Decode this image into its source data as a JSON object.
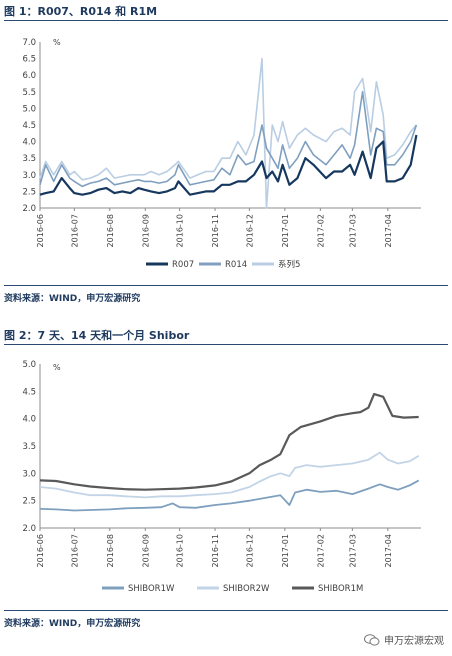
{
  "fig1": {
    "title": "图 1：R007、R014 和 R1M",
    "source": "资料来源：WIND，申万宏源研究",
    "chart_data": {
      "type": "line",
      "ylabel": "%",
      "ylim": [
        2.0,
        7.0
      ],
      "yticks": [
        "2.0",
        "2.5",
        "3.0",
        "3.5",
        "4.0",
        "4.5",
        "5.0",
        "5.5",
        "6.0",
        "6.5",
        "7.0"
      ],
      "x_range": [
        "2016-06-01",
        "2017-04-30"
      ],
      "xticks": [
        "2016-06",
        "2016-07",
        "2016-08",
        "2016-09",
        "2016-10",
        "2016-11",
        "2016-12",
        "2017-01",
        "2017-02",
        "2017-03",
        "2017-04"
      ],
      "legend_position": "bottom",
      "series": [
        {
          "name": "R007",
          "color": "#16375e",
          "width": 2.2,
          "x": [
            "2016-06-01",
            "2016-06-06",
            "2016-06-13",
            "2016-06-20",
            "2016-06-27",
            "2016-07-01",
            "2016-07-08",
            "2016-07-15",
            "2016-07-22",
            "2016-07-29",
            "2016-08-05",
            "2016-08-12",
            "2016-08-19",
            "2016-08-26",
            "2016-08-31",
            "2016-09-06",
            "2016-09-13",
            "2016-09-20",
            "2016-09-27",
            "2016-09-30",
            "2016-10-10",
            "2016-10-17",
            "2016-10-24",
            "2016-10-31",
            "2016-11-07",
            "2016-11-14",
            "2016-11-21",
            "2016-11-28",
            "2016-12-05",
            "2016-12-12",
            "2016-12-16",
            "2016-12-21",
            "2016-12-26",
            "2016-12-30",
            "2017-01-05",
            "2017-01-12",
            "2017-01-19",
            "2017-01-26",
            "2017-02-06",
            "2017-02-13",
            "2017-02-20",
            "2017-02-27",
            "2017-03-03",
            "2017-03-10",
            "2017-03-17",
            "2017-03-22",
            "2017-03-28",
            "2017-03-31",
            "2017-04-07",
            "2017-04-14",
            "2017-04-21",
            "2017-04-26"
          ],
          "values": [
            2.4,
            2.45,
            2.5,
            2.9,
            2.6,
            2.45,
            2.4,
            2.45,
            2.55,
            2.6,
            2.45,
            2.5,
            2.45,
            2.6,
            2.55,
            2.5,
            2.45,
            2.5,
            2.6,
            2.8,
            2.4,
            2.45,
            2.5,
            2.5,
            2.7,
            2.7,
            2.8,
            2.8,
            3.0,
            3.4,
            2.9,
            3.1,
            2.8,
            3.3,
            2.7,
            2.9,
            3.5,
            3.3,
            2.9,
            3.1,
            3.1,
            3.3,
            3.0,
            3.7,
            2.9,
            3.8,
            4.0,
            2.8,
            2.8,
            2.9,
            3.3,
            4.2
          ]
        },
        {
          "name": "R014",
          "color": "#7f9fbf",
          "width": 1.6,
          "x": [
            "2016-06-01",
            "2016-06-06",
            "2016-06-13",
            "2016-06-20",
            "2016-06-27",
            "2016-07-01",
            "2016-07-08",
            "2016-07-15",
            "2016-07-22",
            "2016-07-29",
            "2016-08-05",
            "2016-08-12",
            "2016-08-19",
            "2016-08-26",
            "2016-08-31",
            "2016-09-06",
            "2016-09-13",
            "2016-09-20",
            "2016-09-27",
            "2016-09-30",
            "2016-10-10",
            "2016-10-17",
            "2016-10-24",
            "2016-10-31",
            "2016-11-07",
            "2016-11-14",
            "2016-11-21",
            "2016-11-28",
            "2016-12-05",
            "2016-12-12",
            "2016-12-16",
            "2016-12-21",
            "2016-12-26",
            "2016-12-30",
            "2017-01-05",
            "2017-01-12",
            "2017-01-19",
            "2017-01-26",
            "2017-02-06",
            "2017-02-13",
            "2017-02-20",
            "2017-02-27",
            "2017-03-03",
            "2017-03-10",
            "2017-03-17",
            "2017-03-22",
            "2017-03-28",
            "2017-03-31",
            "2017-04-07",
            "2017-04-14",
            "2017-04-21",
            "2017-04-26"
          ],
          "values": [
            2.7,
            3.3,
            2.8,
            3.3,
            2.9,
            2.8,
            2.65,
            2.75,
            2.8,
            2.9,
            2.7,
            2.75,
            2.8,
            2.85,
            2.8,
            2.8,
            2.75,
            2.8,
            3.0,
            3.3,
            2.7,
            2.75,
            2.8,
            2.85,
            3.2,
            3.0,
            3.6,
            3.3,
            3.4,
            4.5,
            3.8,
            3.5,
            3.2,
            3.9,
            3.2,
            3.5,
            4.0,
            3.6,
            3.3,
            3.6,
            3.9,
            3.5,
            3.9,
            5.5,
            3.6,
            4.4,
            4.3,
            3.3,
            3.3,
            3.6,
            4.0,
            4.5
          ]
        },
        {
          "name": "系列5",
          "color": "#b9cde3",
          "width": 1.6,
          "x": [
            "2016-06-01",
            "2016-06-06",
            "2016-06-13",
            "2016-06-20",
            "2016-06-27",
            "2016-07-01",
            "2016-07-08",
            "2016-07-15",
            "2016-07-22",
            "2016-07-29",
            "2016-08-05",
            "2016-08-12",
            "2016-08-19",
            "2016-08-26",
            "2016-08-31",
            "2016-09-06",
            "2016-09-13",
            "2016-09-20",
            "2016-09-27",
            "2016-09-30",
            "2016-10-10",
            "2016-10-17",
            "2016-10-24",
            "2016-10-31",
            "2016-11-07",
            "2016-11-14",
            "2016-11-21",
            "2016-11-28",
            "2016-12-05",
            "2016-12-12",
            "2016-12-16",
            "2016-12-21",
            "2016-12-26",
            "2016-12-30",
            "2017-01-05",
            "2017-01-12",
            "2017-01-19",
            "2017-01-26",
            "2017-02-06",
            "2017-02-13",
            "2017-02-20",
            "2017-02-27",
            "2017-03-03",
            "2017-03-10",
            "2017-03-17",
            "2017-03-22",
            "2017-03-28",
            "2017-03-31",
            "2017-04-07",
            "2017-04-14",
            "2017-04-21",
            "2017-04-26"
          ],
          "values": [
            2.9,
            3.4,
            3.0,
            3.4,
            3.0,
            3.1,
            2.85,
            2.9,
            3.0,
            3.2,
            2.9,
            2.95,
            3.0,
            3.0,
            3.0,
            3.1,
            3.0,
            3.1,
            3.3,
            3.4,
            2.9,
            3.0,
            3.1,
            3.1,
            3.5,
            3.5,
            4.0,
            3.6,
            4.2,
            6.5,
            2.0,
            4.5,
            4.0,
            4.6,
            3.8,
            4.2,
            4.4,
            4.2,
            4.0,
            4.3,
            4.4,
            4.2,
            5.5,
            5.9,
            4.3,
            5.8,
            4.8,
            3.5,
            3.6,
            3.9,
            4.3,
            4.5
          ]
        }
      ]
    }
  },
  "fig2": {
    "title": "图 2：7 天、14 天和一个月 Shibor",
    "source": "资料来源：WIND，申万宏源研究",
    "chart_data": {
      "type": "line",
      "ylabel": "%",
      "ylim": [
        2.0,
        5.0
      ],
      "yticks": [
        "2.0",
        "2.5",
        "3.0",
        "3.5",
        "4.0",
        "4.5",
        "5.0"
      ],
      "x_range": [
        "2016-06-01",
        "2017-04-30"
      ],
      "xticks": [
        "2016-06",
        "2016-07",
        "2016-08",
        "2016-09",
        "2016-10",
        "2016-11",
        "2016-12",
        "2017-01",
        "2017-02",
        "2017-03",
        "2017-04"
      ],
      "legend_position": "bottom",
      "series": [
        {
          "name": "SHIBOR1W",
          "color": "#7f9fbf",
          "width": 1.8,
          "x": [
            "2016-06-01",
            "2016-06-15",
            "2016-07-01",
            "2016-07-15",
            "2016-08-01",
            "2016-08-15",
            "2016-09-01",
            "2016-09-15",
            "2016-09-25",
            "2016-10-01",
            "2016-10-15",
            "2016-11-01",
            "2016-11-15",
            "2016-12-01",
            "2016-12-15",
            "2016-12-28",
            "2017-01-05",
            "2017-01-10",
            "2017-01-20",
            "2017-02-01",
            "2017-02-15",
            "2017-03-01",
            "2017-03-15",
            "2017-03-25",
            "2017-04-01",
            "2017-04-10",
            "2017-04-20",
            "2017-04-28"
          ],
          "values": [
            2.35,
            2.34,
            2.32,
            2.33,
            2.34,
            2.36,
            2.37,
            2.38,
            2.45,
            2.38,
            2.37,
            2.42,
            2.45,
            2.5,
            2.55,
            2.6,
            2.42,
            2.65,
            2.7,
            2.66,
            2.68,
            2.62,
            2.72,
            2.8,
            2.75,
            2.7,
            2.78,
            2.87
          ]
        },
        {
          "name": "SHIBOR2W",
          "color": "#c2d4e6",
          "width": 1.8,
          "x": [
            "2016-06-01",
            "2016-06-15",
            "2016-07-01",
            "2016-07-15",
            "2016-08-01",
            "2016-08-15",
            "2016-09-01",
            "2016-09-15",
            "2016-10-01",
            "2016-10-15",
            "2016-11-01",
            "2016-11-15",
            "2016-12-01",
            "2016-12-10",
            "2016-12-20",
            "2016-12-28",
            "2017-01-05",
            "2017-01-10",
            "2017-01-20",
            "2017-02-01",
            "2017-02-15",
            "2017-03-01",
            "2017-03-15",
            "2017-03-25",
            "2017-04-01",
            "2017-04-10",
            "2017-04-20",
            "2017-04-28"
          ],
          "values": [
            2.75,
            2.72,
            2.65,
            2.6,
            2.6,
            2.58,
            2.56,
            2.58,
            2.58,
            2.6,
            2.62,
            2.65,
            2.75,
            2.85,
            2.95,
            3.0,
            2.95,
            3.1,
            3.15,
            3.12,
            3.15,
            3.18,
            3.25,
            3.38,
            3.25,
            3.18,
            3.22,
            3.32
          ]
        },
        {
          "name": "SHIBOR1M",
          "color": "#595959",
          "width": 2.2,
          "x": [
            "2016-06-01",
            "2016-06-15",
            "2016-07-01",
            "2016-07-15",
            "2016-08-01",
            "2016-08-15",
            "2016-09-01",
            "2016-09-15",
            "2016-10-01",
            "2016-10-15",
            "2016-11-01",
            "2016-11-15",
            "2016-12-01",
            "2016-12-10",
            "2016-12-20",
            "2016-12-28",
            "2017-01-05",
            "2017-01-15",
            "2017-02-01",
            "2017-02-15",
            "2017-03-01",
            "2017-03-08",
            "2017-03-15",
            "2017-03-20",
            "2017-03-28",
            "2017-04-05",
            "2017-04-15",
            "2017-04-28"
          ],
          "values": [
            2.87,
            2.86,
            2.8,
            2.76,
            2.73,
            2.71,
            2.7,
            2.71,
            2.72,
            2.74,
            2.78,
            2.85,
            3.0,
            3.15,
            3.25,
            3.35,
            3.7,
            3.85,
            3.95,
            4.05,
            4.1,
            4.12,
            4.2,
            4.45,
            4.4,
            4.05,
            4.02,
            4.03
          ]
        }
      ]
    }
  },
  "watermark": {
    "text": "申万宏源宏观"
  }
}
